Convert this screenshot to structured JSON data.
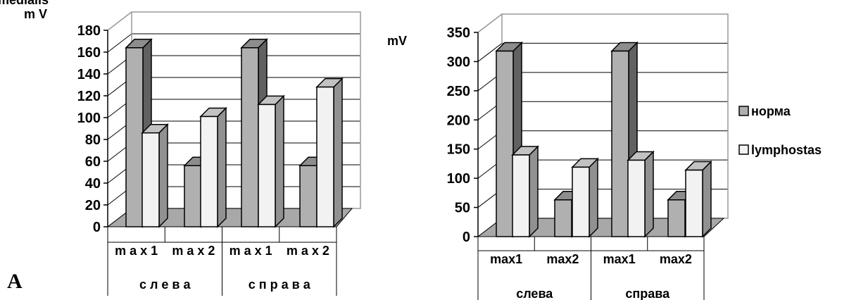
{
  "panel_label": "A",
  "top_fragment": "medialis",
  "chart_data": [
    {
      "type": "bar",
      "ylabel": "m V",
      "ylim": [
        0,
        180
      ],
      "yticks": [
        0,
        20,
        40,
        60,
        80,
        100,
        120,
        140,
        160,
        180
      ],
      "categories": [
        "m a x 1",
        "m a x 2",
        "m a x 1",
        "m a x 2"
      ],
      "groups": [
        "с л е в а",
        "с п р а в а"
      ],
      "grid": true,
      "series": [
        {
          "name": "норма",
          "values": [
            164,
            56,
            164,
            56
          ],
          "color": "#b0b0b0"
        },
        {
          "name": "lymphostas",
          "values": [
            86,
            101,
            112,
            128
          ],
          "color": "#f2f2f2"
        }
      ]
    },
    {
      "type": "bar",
      "ylabel": "mV",
      "ylim": [
        0,
        350
      ],
      "yticks": [
        0,
        50,
        100,
        150,
        200,
        250,
        300,
        350
      ],
      "categories": [
        "max1",
        "max2",
        "max1",
        "max2"
      ],
      "groups": [
        "слева",
        "справа"
      ],
      "grid": true,
      "legend": "right",
      "series": [
        {
          "name": "норма",
          "values": [
            318,
            63,
            318,
            63
          ],
          "color": "#b0b0b0"
        },
        {
          "name": "lymphostas",
          "values": [
            140,
            119,
            131,
            114
          ],
          "color": "#f2f2f2"
        }
      ]
    }
  ]
}
